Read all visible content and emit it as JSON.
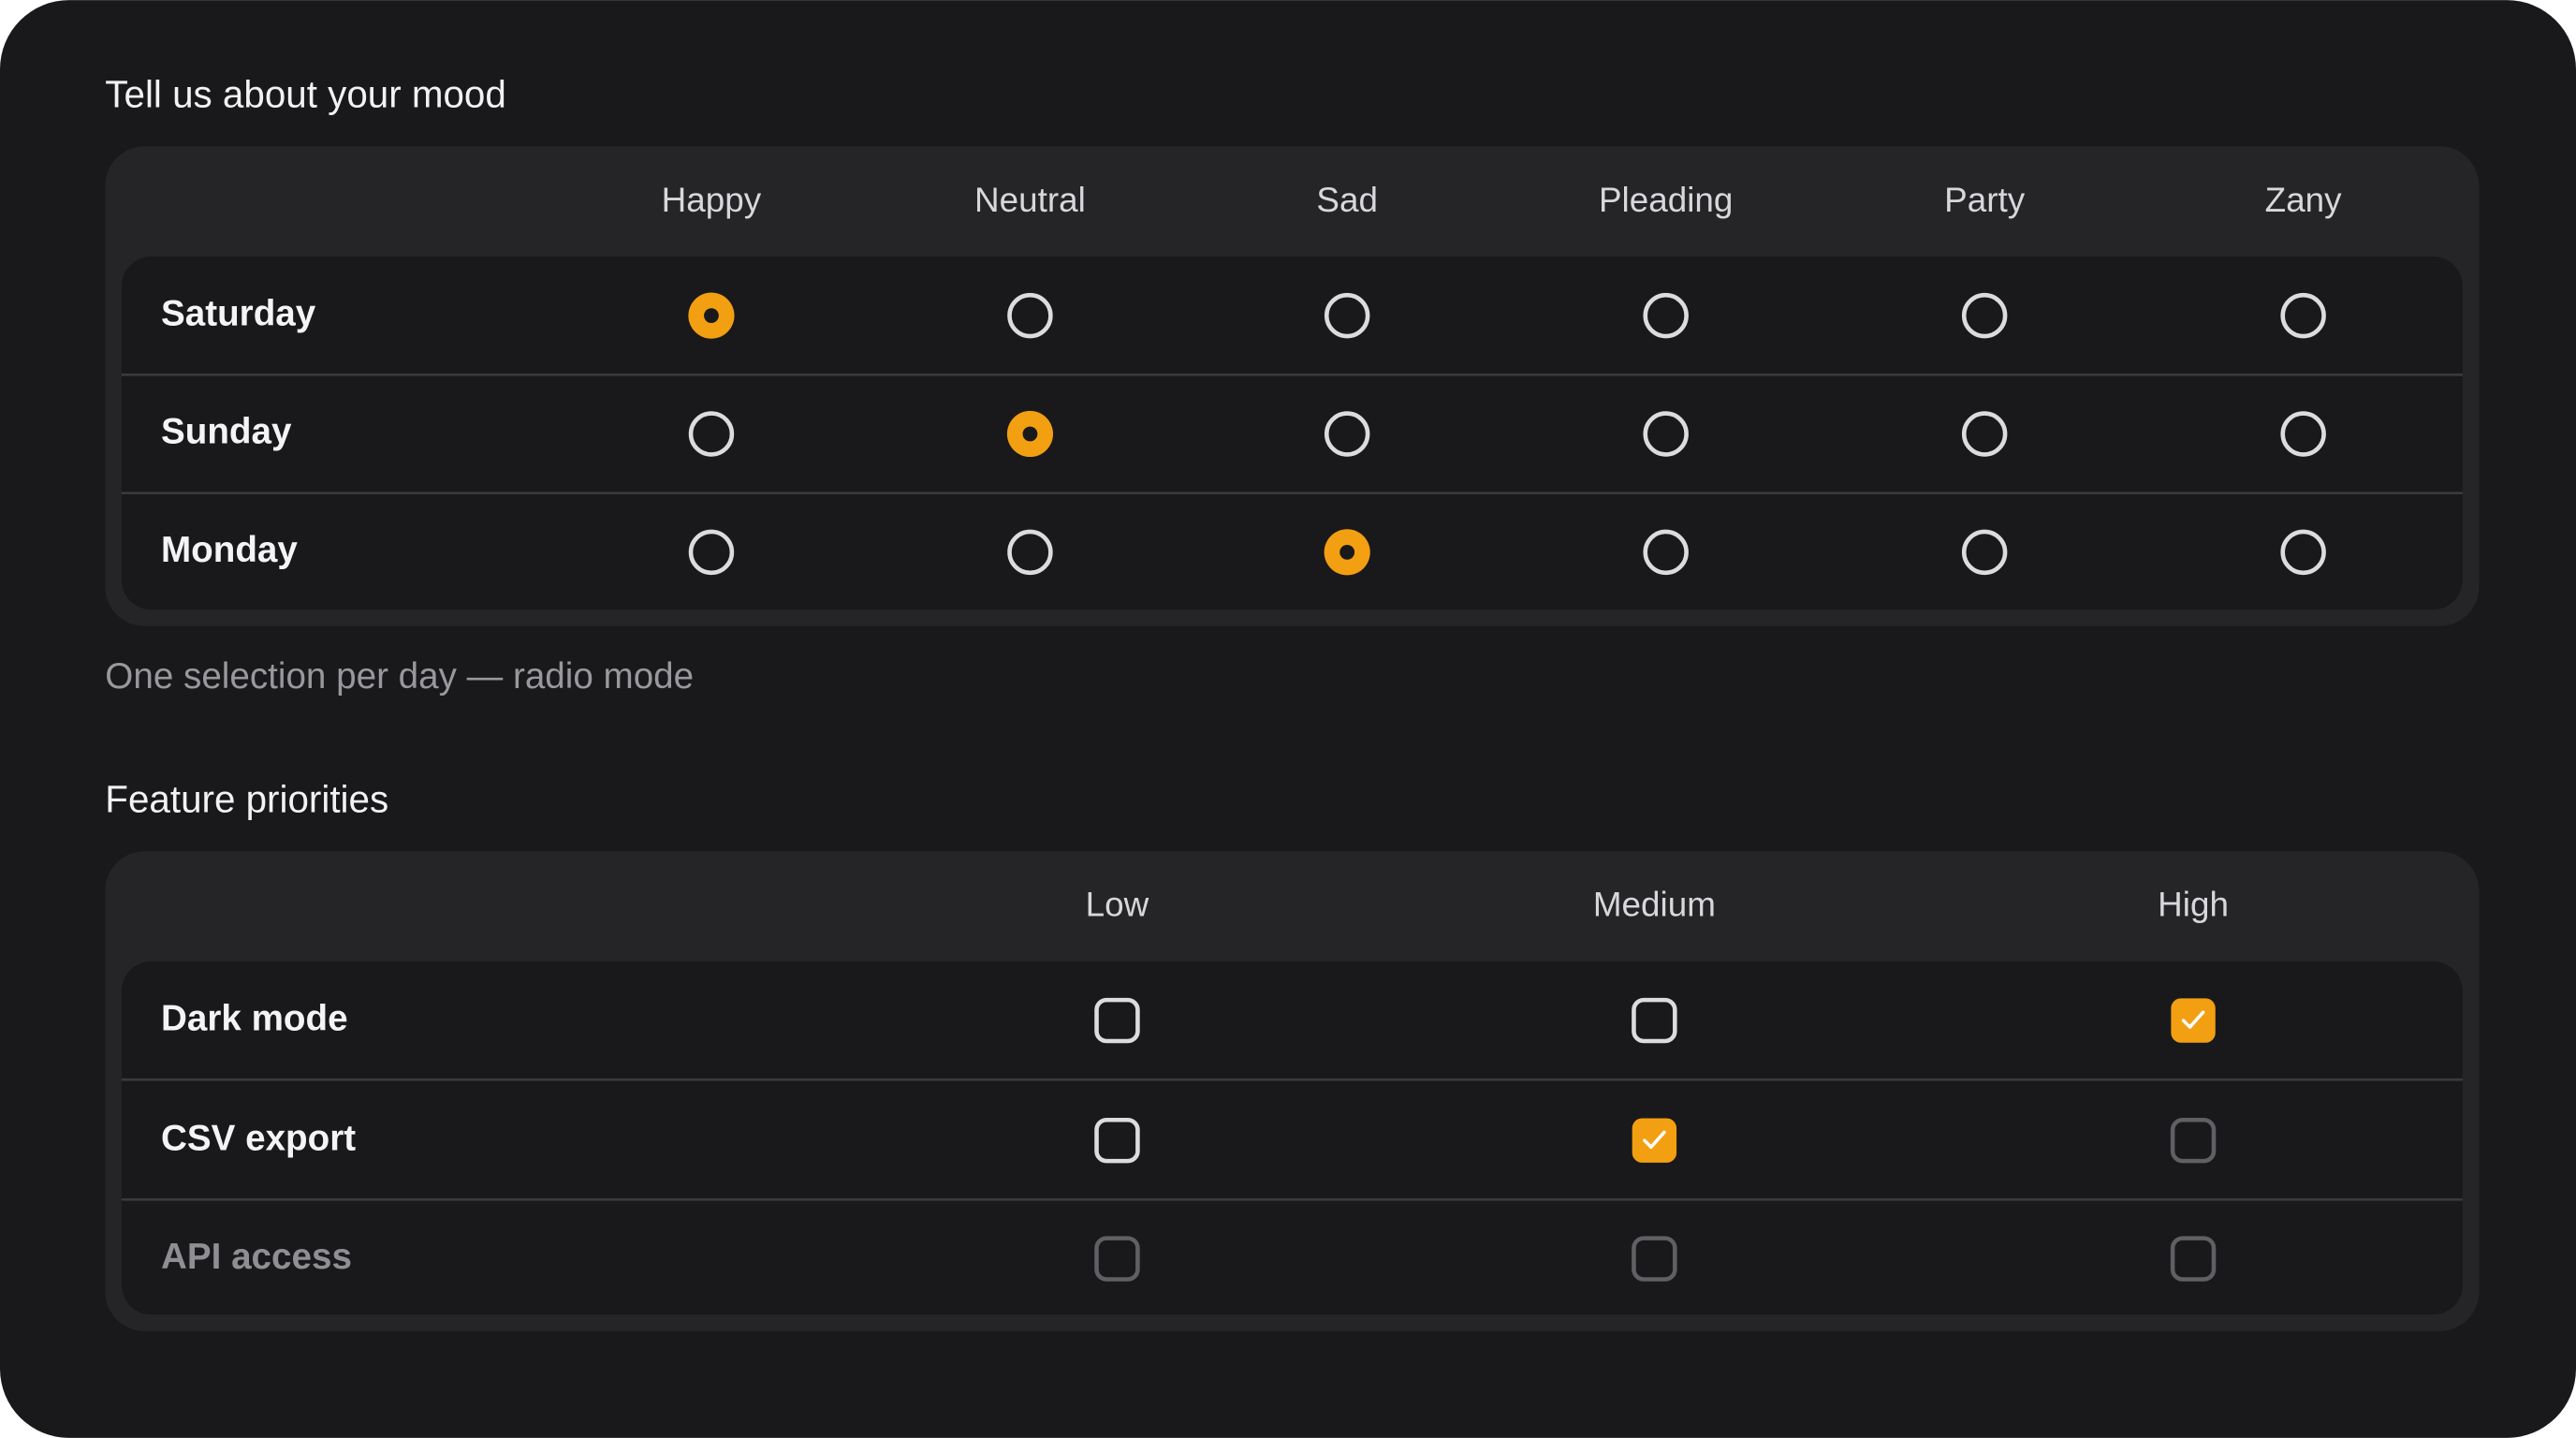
{
  "mood": {
    "title": "Tell us about your mood",
    "columns": [
      "Happy",
      "Neutral",
      "Sad",
      "Pleading",
      "Party",
      "Zany"
    ],
    "rows": [
      {
        "label": "Saturday",
        "selected": 0
      },
      {
        "label": "Sunday",
        "selected": 1
      },
      {
        "label": "Monday",
        "selected": 2
      }
    ],
    "caption": "One selection per day — radio mode"
  },
  "features": {
    "title": "Feature priorities",
    "columns": [
      "Low",
      "Medium",
      "High"
    ],
    "rows": [
      {
        "label": "Dark mode",
        "checked": [
          false,
          false,
          true
        ],
        "disabled": [
          false,
          false,
          false
        ]
      },
      {
        "label": "CSV export",
        "checked": [
          false,
          true,
          false
        ],
        "disabled": [
          false,
          false,
          true
        ]
      },
      {
        "label": "API access",
        "checked": [
          false,
          false,
          false
        ],
        "disabled": [
          true,
          true,
          true
        ]
      }
    ]
  }
}
